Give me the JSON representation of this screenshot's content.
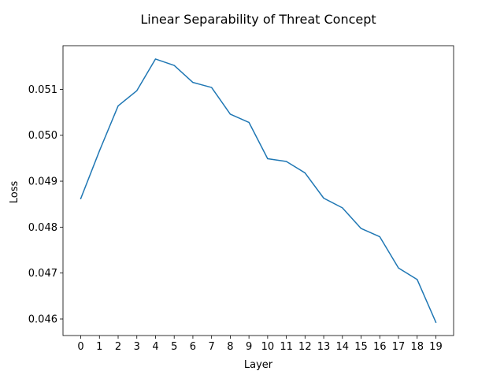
{
  "chart_data": {
    "type": "line",
    "title": "Linear Separability of Threat Concept",
    "xlabel": "Layer",
    "ylabel": "Loss",
    "x": [
      0,
      1,
      2,
      3,
      4,
      5,
      6,
      7,
      8,
      9,
      10,
      11,
      12,
      13,
      14,
      15,
      16,
      17,
      18,
      19
    ],
    "x_tick_labels": [
      "0",
      "1",
      "2",
      "3",
      "4",
      "5",
      "6",
      "7",
      "8",
      "9",
      "10",
      "11",
      "12",
      "13",
      "14",
      "15",
      "16",
      "17",
      "18",
      "19"
    ],
    "y_tick_labels": [
      "0.046",
      "0.047",
      "0.048",
      "0.049",
      "0.050",
      "0.051"
    ],
    "y_ticks": [
      0.046,
      0.047,
      0.048,
      0.049,
      0.05,
      0.051
    ],
    "series": [
      {
        "values": [
          0.04862,
          0.04966,
          0.05064,
          0.05097,
          0.05166,
          0.05152,
          0.05115,
          0.05104,
          0.05046,
          0.05028,
          0.04949,
          0.04943,
          0.04918,
          0.04863,
          0.04842,
          0.04797,
          0.04779,
          0.04711,
          0.04686,
          0.04593
        ],
        "color": "#1f77b4"
      }
    ],
    "xlim": [
      -0.95,
      19.95
    ],
    "ylim": [
      0.04564,
      0.05195
    ],
    "grid": false,
    "legend": "none"
  }
}
